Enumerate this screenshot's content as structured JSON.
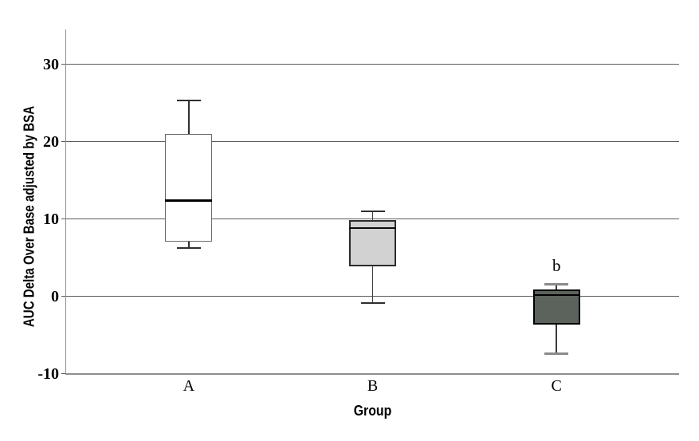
{
  "chart_data": {
    "type": "boxplot",
    "title": "",
    "xlabel": "Group",
    "ylabel": "AUC Delta Over Base adjusted by BSA",
    "ylim": [
      -10,
      34.5
    ],
    "y_ticks": [
      30,
      20,
      10,
      0,
      -10
    ],
    "categories": [
      "A",
      "B",
      "C"
    ],
    "grid": true,
    "legend": false,
    "groups": [
      {
        "label": "A",
        "whisker_low": 6.2,
        "q1": 7.1,
        "median": 12.4,
        "q3": 21.0,
        "whisker_high": 25.3,
        "fill": "#ffffff",
        "border_color": "#6b6b6b",
        "border_w": 1,
        "median_color": "#000000",
        "median_w": 3,
        "whisker_color": "#2f2f2f",
        "cap_color": "#2f2f2f",
        "cap_w": 2
      },
      {
        "label": "B",
        "whisker_low": -0.9,
        "q1": 3.9,
        "median": 8.8,
        "q3": 9.9,
        "whisker_high": 11.0,
        "fill": "#d2d2d2",
        "border_color": "#2b2b2b",
        "border_w": 2,
        "median_color": "#0d0d0d",
        "median_w": 2,
        "whisker_color": "#3a3a3a",
        "cap_color": "#2f2f2f",
        "cap_w": 2
      },
      {
        "label": "C",
        "whisker_low": -7.4,
        "q1": -3.7,
        "median": 0.2,
        "q3": 0.9,
        "whisker_high": 1.5,
        "fill": "#5b635c",
        "border_color": "#000000",
        "border_w": 2,
        "median_color": "#000000",
        "median_w": 2,
        "whisker_color": "#3a3a3a",
        "cap_color": "#8a8a8a",
        "cap_w": 3
      }
    ],
    "annotations": [
      {
        "text": "b",
        "category": "C",
        "y_value": 4.0
      }
    ],
    "colors": {
      "background": "#ffffff",
      "gridline": "#5c5c5c",
      "axis": "#8f8f8f",
      "text": "#000000"
    }
  }
}
